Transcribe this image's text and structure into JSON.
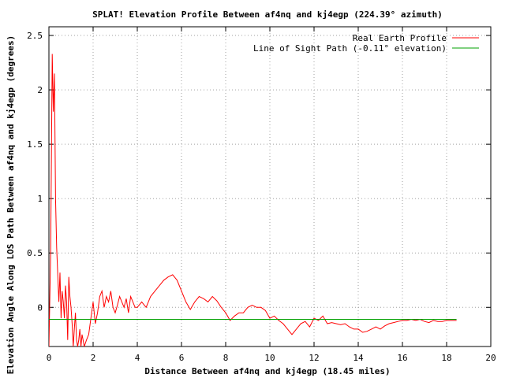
{
  "chart_data": {
    "type": "line",
    "title": "SPLAT! Elevation Profile Between af4nq and kj4egp (224.39° azimuth)",
    "xlabel": "Distance Between af4nq and kj4egp (18.45 miles)",
    "ylabel": "Elevation Angle Along LOS Path Between af4nq and kj4egp (degrees)",
    "xlim": [
      0,
      20
    ],
    "ylim": [
      -0.36,
      2.58
    ],
    "x_ticks": [
      0,
      2,
      4,
      6,
      8,
      10,
      12,
      14,
      16,
      18,
      20
    ],
    "y_ticks": [
      -0.0,
      0.5,
      1,
      1.5,
      2,
      2.5
    ],
    "x_tick_labels": [
      "0",
      "2",
      "4",
      "6",
      "8",
      "10",
      "12",
      "14",
      "16",
      "18",
      "20"
    ],
    "y_tick_labels": [
      "0",
      "0.5",
      "1",
      "1.5",
      "2",
      "2.5"
    ],
    "grid": true,
    "legend_position": "top-right",
    "series": [
      {
        "name": "Real Earth Profile",
        "color": "#ff0000",
        "x": [
          0.0,
          0.08,
          0.15,
          0.2,
          0.25,
          0.3,
          0.35,
          0.4,
          0.45,
          0.5,
          0.55,
          0.6,
          0.65,
          0.7,
          0.75,
          0.8,
          0.85,
          0.9,
          0.95,
          1.0,
          1.05,
          1.1,
          1.15,
          1.2,
          1.25,
          1.3,
          1.35,
          1.4,
          1.45,
          1.5,
          1.6,
          1.7,
          1.8,
          1.9,
          2.0,
          2.1,
          2.2,
          2.3,
          2.4,
          2.5,
          2.6,
          2.7,
          2.8,
          2.9,
          3.0,
          3.1,
          3.2,
          3.3,
          3.4,
          3.5,
          3.6,
          3.7,
          3.8,
          3.9,
          4.0,
          4.2,
          4.4,
          4.6,
          4.8,
          5.0,
          5.2,
          5.4,
          5.6,
          5.8,
          6.0,
          6.2,
          6.4,
          6.6,
          6.8,
          7.0,
          7.2,
          7.4,
          7.6,
          7.8,
          8.0,
          8.2,
          8.4,
          8.6,
          8.8,
          9.0,
          9.2,
          9.4,
          9.6,
          9.8,
          10.0,
          10.2,
          10.4,
          10.6,
          10.8,
          11.0,
          11.2,
          11.4,
          11.6,
          11.8,
          12.0,
          12.2,
          12.4,
          12.6,
          12.8,
          13.0,
          13.2,
          13.4,
          13.6,
          13.8,
          14.0,
          14.2,
          14.4,
          14.6,
          14.8,
          15.0,
          15.2,
          15.4,
          15.6,
          15.8,
          16.0,
          16.2,
          16.4,
          16.6,
          16.8,
          17.0,
          17.2,
          17.4,
          17.6,
          17.8,
          18.0,
          18.2,
          18.45
        ],
        "y": [
          -0.36,
          0.5,
          2.33,
          1.8,
          2.15,
          1.0,
          0.55,
          0.3,
          0.05,
          0.32,
          -0.1,
          0.15,
          0.05,
          -0.1,
          0.2,
          0.05,
          -0.3,
          0.28,
          0.1,
          0.0,
          -0.15,
          -0.36,
          -0.2,
          -0.05,
          -0.3,
          -0.36,
          -0.3,
          -0.2,
          -0.36,
          -0.25,
          -0.36,
          -0.3,
          -0.25,
          -0.1,
          0.05,
          -0.15,
          -0.05,
          0.1,
          0.15,
          0.0,
          0.1,
          0.05,
          0.15,
          0.0,
          -0.05,
          0.02,
          0.1,
          0.05,
          0.0,
          0.08,
          -0.05,
          0.1,
          0.05,
          0.0,
          0.0,
          0.05,
          0.0,
          0.1,
          0.15,
          0.2,
          0.25,
          0.28,
          0.3,
          0.25,
          0.15,
          0.05,
          -0.02,
          0.05,
          0.1,
          0.08,
          0.05,
          0.1,
          0.06,
          0.0,
          -0.05,
          -0.12,
          -0.08,
          -0.05,
          -0.05,
          0.0,
          0.02,
          0.0,
          0.0,
          -0.03,
          -0.1,
          -0.08,
          -0.12,
          -0.15,
          -0.2,
          -0.25,
          -0.2,
          -0.15,
          -0.13,
          -0.18,
          -0.1,
          -0.12,
          -0.08,
          -0.15,
          -0.14,
          -0.15,
          -0.16,
          -0.15,
          -0.18,
          -0.2,
          -0.2,
          -0.23,
          -0.22,
          -0.2,
          -0.18,
          -0.2,
          -0.17,
          -0.15,
          -0.14,
          -0.13,
          -0.12,
          -0.12,
          -0.11,
          -0.12,
          -0.11,
          -0.13,
          -0.14,
          -0.12,
          -0.13,
          -0.13,
          -0.12,
          -0.12,
          -0.12
        ]
      },
      {
        "name": "Line of Sight Path (-0.11° elevation)",
        "color": "#00a000",
        "x": [
          0.0,
          18.45
        ],
        "y": [
          -0.11,
          -0.11
        ]
      }
    ]
  }
}
